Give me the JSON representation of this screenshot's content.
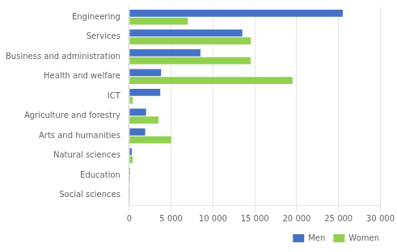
{
  "chart_data": {
    "type": "bar",
    "orientation": "horizontal",
    "categories": [
      "Engineering",
      "Services",
      "Business and administration",
      "Health and welfare",
      "ICT",
      "Agriculture and forestry",
      "Arts and humanities",
      "Natural sciences",
      "Education",
      "Social sciences"
    ],
    "series": [
      {
        "name": "Men",
        "color": "#4472c4",
        "values": [
          25500,
          13500,
          8500,
          3800,
          3700,
          2000,
          1900,
          300,
          100,
          30
        ]
      },
      {
        "name": "Women",
        "color": "#92d050",
        "values": [
          7000,
          14500,
          14500,
          19500,
          400,
          3500,
          5000,
          400,
          100,
          30
        ]
      }
    ],
    "xlim": [
      0,
      30000
    ],
    "xticks": [
      0,
      {
        "value": 5000,
        "label": "5 000"
      },
      {
        "value": 10000,
        "label": "10 000"
      },
      {
        "value": 15000,
        "label": "15 000"
      },
      {
        "value": 20000,
        "label": "20 000"
      },
      {
        "value": 25000,
        "label": "25 000"
      },
      {
        "value": 30000,
        "label": "30 000"
      }
    ],
    "grid": true,
    "legend": "lower right"
  }
}
